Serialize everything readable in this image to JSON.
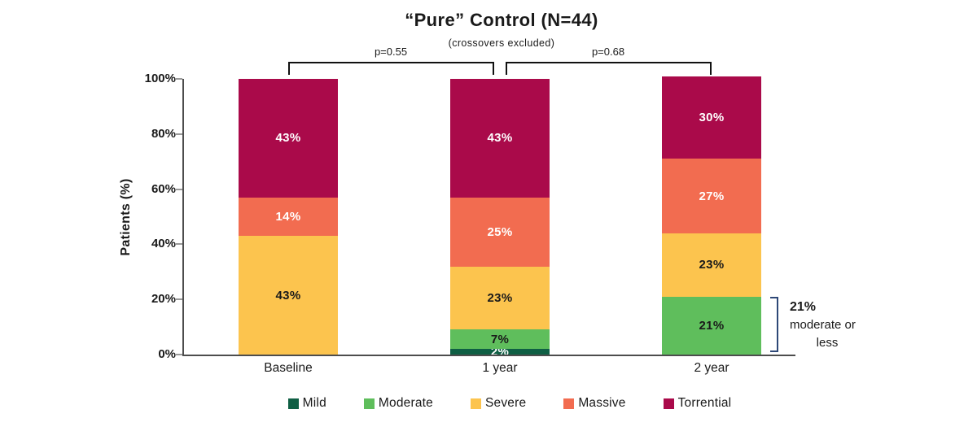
{
  "chart_data": {
    "type": "bar",
    "stacked": true,
    "title": "“Pure” Control (N=44)",
    "subtitle": "(crossovers excluded)",
    "ylabel": "Patients (%)",
    "ylim": [
      0,
      100
    ],
    "yticks": [
      0,
      20,
      40,
      60,
      80,
      100
    ],
    "ytick_suffix": "%",
    "grid": "off",
    "legend_position": "bottom",
    "categories": [
      "Baseline",
      "1 year",
      "2 year"
    ],
    "series": [
      {
        "name": "Mild",
        "color": "#0f5f44",
        "label_color": "#ffffff",
        "values": [
          null,
          2,
          null
        ]
      },
      {
        "name": "Moderate",
        "color": "#5fbe5c",
        "label_color": "#1a1a1a",
        "values": [
          null,
          7,
          21
        ]
      },
      {
        "name": "Severe",
        "color": "#fcc44e",
        "label_color": "#1a1a1a",
        "values": [
          43,
          23,
          23
        ]
      },
      {
        "name": "Massive",
        "color": "#f26c50",
        "label_color": "#ffffff",
        "values": [
          14,
          25,
          27
        ]
      },
      {
        "name": "Torrential",
        "color": "#aa0a4a",
        "label_color": "#ffffff",
        "values": [
          43,
          43,
          30
        ]
      }
    ],
    "comparisons": [
      {
        "label": "p=0.55",
        "between": [
          "Baseline",
          "1 year"
        ]
      },
      {
        "label": "p=0.68",
        "between": [
          "1 year",
          "2 year"
        ]
      }
    ],
    "annotation": {
      "refers_to": "2 year",
      "lines": [
        "21%",
        "moderate or",
        "less"
      ]
    }
  },
  "colors": {
    "axis": "#4d4d4d",
    "tick": "#9a9a9a",
    "comparison_bracket": "#111111",
    "annotation_bracket": "#2e4877",
    "text": "#1a1a1a"
  }
}
